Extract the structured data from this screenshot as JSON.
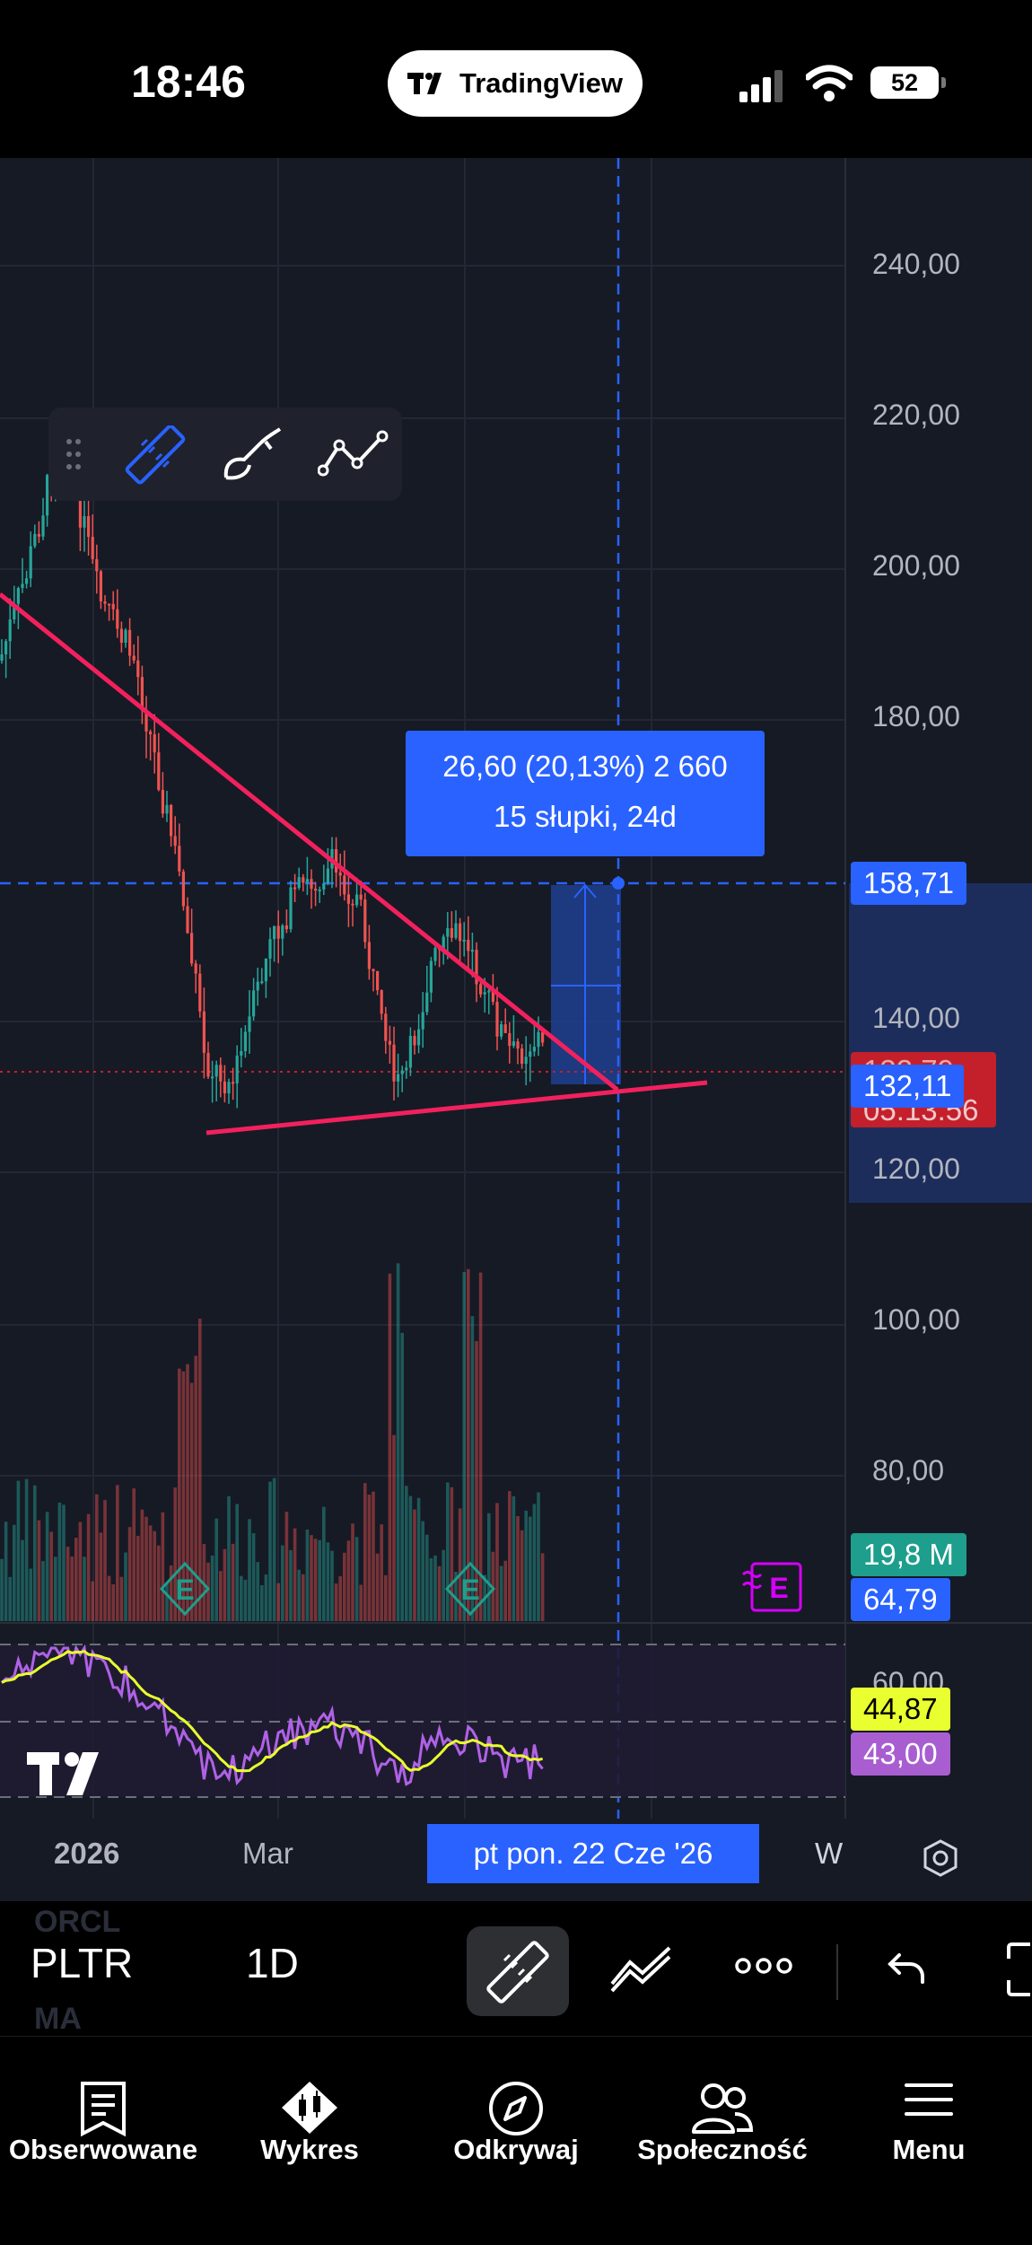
{
  "status_bar": {
    "time": "18:46",
    "app_pill": "TradingView",
    "battery": "52"
  },
  "chart": {
    "price_ticks": [
      "240,00",
      "220,00",
      "200,00",
      "180,00",
      "140,00",
      "120,00",
      "100,00",
      "80,00",
      "60,00"
    ],
    "labels": {
      "measure_top": "158,71",
      "red_price_partial": "132,79",
      "countdown": "05:13:56",
      "current_price": "132,11",
      "volume": "19,8 M",
      "volume_ma": "64,79",
      "rsi": "44,87",
      "rsi_ma": "43,00"
    },
    "measure": {
      "line1": "26,60 (20,13%) 2 660",
      "line2": "15 słupki, 24d"
    },
    "earnings_marker": "E",
    "dates": {
      "year": "2026",
      "month": "Mar",
      "crosshair": "pt   pon. 22 Cze '26",
      "timeframe": "W"
    }
  },
  "toolbar": {
    "symbol": "PLTR",
    "interval": "1D",
    "ghost_top": "ORCL",
    "ghost_bottom": "MA"
  },
  "tabs": [
    {
      "label": "Obserwowane",
      "icon": "watchlist-icon"
    },
    {
      "label": "Wykres",
      "icon": "chart-icon"
    },
    {
      "label": "Odkrywaj",
      "icon": "compass-icon"
    },
    {
      "label": "Społeczność",
      "icon": "community-icon"
    },
    {
      "label": "Menu",
      "icon": "menu-icon"
    }
  ],
  "colors": {
    "accent": "#2962ff",
    "trendline": "#f2215d",
    "up": "#26a69a",
    "down": "#ef5350",
    "rsi": "#b062e6",
    "rsi_ma": "#e9ff2f"
  }
}
